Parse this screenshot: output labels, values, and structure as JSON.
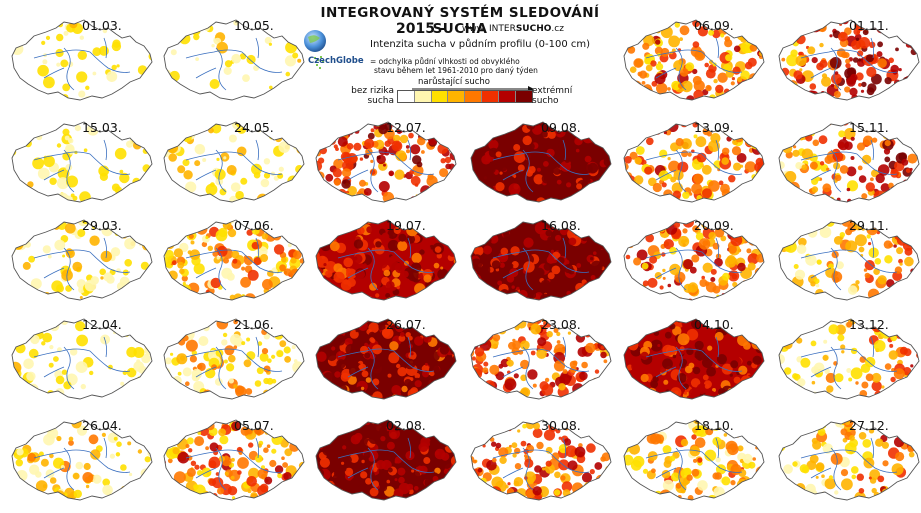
{
  "header": {
    "title": "INTEGROVANÝ SYSTÉM SLEDOVÁNÍ SUCHA",
    "year": "2015 -",
    "website_prefix": "www.",
    "website_plain": "INTER",
    "website_bold": "SUCHO",
    "website_suffix": ".cz",
    "logo_text": "CzechGlobe",
    "subtitle": "Intenzita sucha v půdním profilu (0-100 cm)",
    "description_line1": "= odchylka půdní vlhkosti od obvyklého",
    "description_line2": "stavu během let 1961-2010 pro daný týden"
  },
  "legend": {
    "arrow_label": "narůstající sucho",
    "left_label_1": "bez rizika",
    "left_label_2": "sucha",
    "right_label_1": "extrémní",
    "right_label_2": "sucho",
    "colors": [
      "#ffffff",
      "#fff6b0",
      "#ffe000",
      "#ffb400",
      "#ff7800",
      "#f03000",
      "#b40000",
      "#7a0000"
    ]
  },
  "maps": [
    {
      "date": "01.03.",
      "intensity": 0.1
    },
    {
      "date": "15.03.",
      "intensity": 0.12
    },
    {
      "date": "29.03.",
      "intensity": 0.22
    },
    {
      "date": "12.04.",
      "intensity": 0.1
    },
    {
      "date": "26.04.",
      "intensity": 0.25
    },
    {
      "date": "10.05.",
      "intensity": 0.1
    },
    {
      "date": "24.05.",
      "intensity": 0.2
    },
    {
      "date": "07.06.",
      "intensity": 0.45
    },
    {
      "date": "21.06.",
      "intensity": 0.35
    },
    {
      "date": "05.07.",
      "intensity": 0.55
    },
    {
      "date": "12.07.",
      "intensity": 0.7
    },
    {
      "date": "19.07.",
      "intensity": 0.8
    },
    {
      "date": "26.07.",
      "intensity": 0.88
    },
    {
      "date": "02.08.",
      "intensity": 0.9
    },
    {
      "date": "09.08.",
      "intensity": 0.97
    },
    {
      "date": "16.08.",
      "intensity": 0.95
    },
    {
      "date": "23.08.",
      "intensity": 0.65
    },
    {
      "date": "30.08.",
      "intensity": 0.6
    },
    {
      "date": "06.09.",
      "intensity": 0.55
    },
    {
      "date": "13.09.",
      "intensity": 0.55
    },
    {
      "date": "20.09.",
      "intensity": 0.6
    },
    {
      "date": "04.10.",
      "intensity": 0.8
    },
    {
      "date": "18.10.",
      "intensity": 0.4
    },
    {
      "date": "01.11.",
      "intensity": 0.6
    },
    {
      "date": "15.11.",
      "intensity": 0.45
    },
    {
      "date": "29.11.",
      "intensity": 0.25
    },
    {
      "date": "13.12.",
      "intensity": 0.18
    },
    {
      "date": "27.12.",
      "intensity": 0.25
    }
  ]
}
